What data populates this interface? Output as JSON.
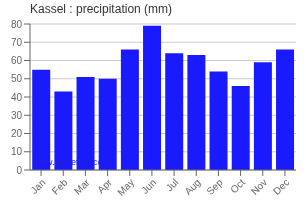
{
  "chart_data": {
    "type": "bar",
    "title": "Kassel : precipitation (mm)",
    "categories": [
      "Jan",
      "Feb",
      "Mar",
      "Apr",
      "May",
      "Jun",
      "Jul",
      "Aug",
      "Sep",
      "Oct",
      "Nov",
      "Dec"
    ],
    "values": [
      55,
      43,
      51,
      50,
      66,
      79,
      64,
      63,
      54,
      46,
      59,
      66
    ],
    "color": "#1a1aff",
    "ylim": [
      0,
      80
    ],
    "yticks": [
      0,
      10,
      20,
      30,
      40,
      50,
      60,
      70,
      80
    ],
    "grid": true,
    "annotations": [
      {
        "text": "www.allmetsat.com",
        "color": "#2222dd"
      }
    ]
  }
}
